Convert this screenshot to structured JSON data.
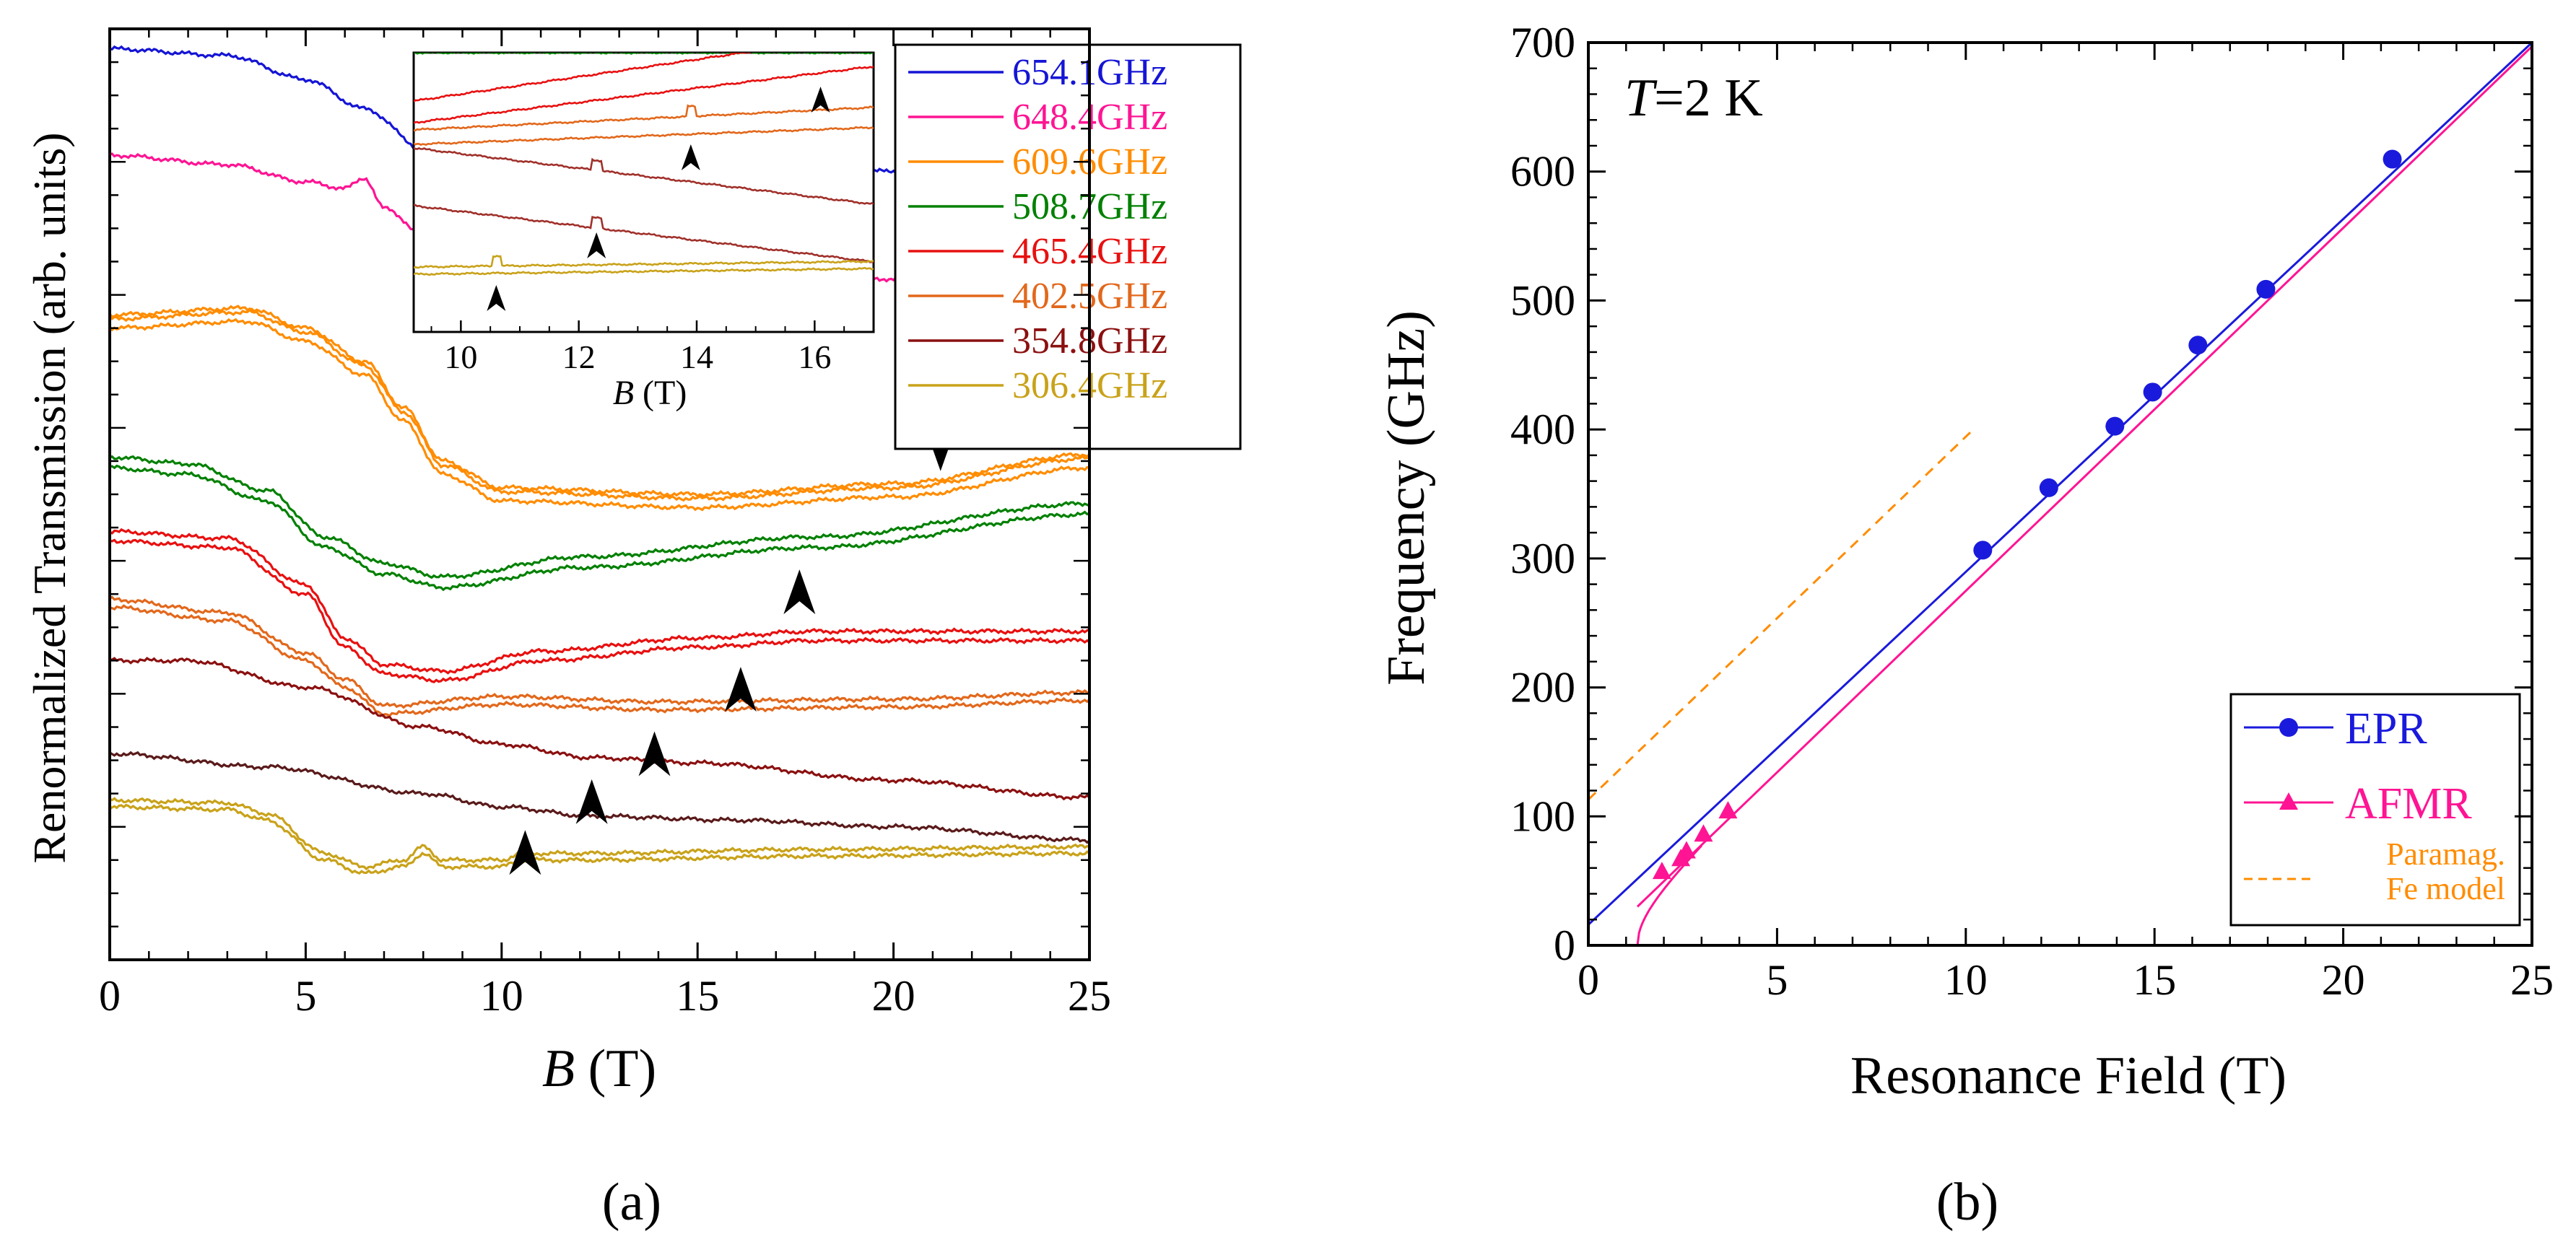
{
  "chart_data": [
    {
      "panel": "a",
      "type": "line",
      "panel_label": "(a)",
      "title": "",
      "xlabel_italic": "B",
      "xlabel_unit": " (T)",
      "ylabel": "Renormalized Transmission (arb. units)",
      "xlim": [
        0,
        25
      ],
      "xticks": [
        "0",
        "5",
        "10",
        "15",
        "20",
        "25"
      ],
      "legend": [
        {
          "label": "654.1GHz",
          "color": "#1515d6"
        },
        {
          "label": "648.4GHz",
          "color": "#ff1493"
        },
        {
          "label": "609.6GHz",
          "color": "#ff8c00"
        },
        {
          "label": "508.7GHz",
          "color": "#008000"
        },
        {
          "label": "465.4GHz",
          "color": "#e81010"
        },
        {
          "label": "402.5GHz",
          "color": "#e2681c"
        },
        {
          "label": "354.8GHz",
          "color": "#8b1010"
        },
        {
          "label": "306.4GHz",
          "color": "#c9a21a"
        }
      ],
      "series": [
        {
          "name": "654.1GHz",
          "color": "#1515d6",
          "offset": 5.9,
          "points": [
            [
              0,
              0.95
            ],
            [
              3,
              0.9
            ],
            [
              5,
              0.72
            ],
            [
              6.5,
              0.5
            ],
            [
              8,
              0.2
            ],
            [
              10,
              0.05
            ],
            [
              12,
              0.02
            ],
            [
              16,
              0.02
            ],
            [
              20,
              0.03
            ],
            [
              23.5,
              0.03
            ]
          ]
        },
        {
          "name": "648.4GHz",
          "color": "#ff1493",
          "offset": 5.1,
          "points": [
            [
              0,
              0.95
            ],
            [
              3,
              0.88
            ],
            [
              5,
              0.75
            ],
            [
              6,
              0.7
            ],
            [
              6.5,
              0.78
            ],
            [
              7,
              0.55
            ],
            [
              8.5,
              0.2
            ],
            [
              10,
              0.1
            ],
            [
              13,
              0.06
            ],
            [
              20,
              0.02
            ],
            [
              25,
              0.0
            ]
          ]
        },
        {
          "name": "609.6GHz",
          "color": "#ff8c00",
          "offset": 3.4,
          "points": [
            [
              0,
              1.35
            ],
            [
              3.5,
              1.4
            ],
            [
              5,
              1.25
            ],
            [
              6.5,
              1.0
            ],
            [
              7.5,
              0.65
            ],
            [
              8.5,
              0.25
            ],
            [
              10,
              0.05
            ],
            [
              15,
              0.0
            ],
            [
              20,
              0.08
            ],
            [
              25,
              0.3
            ]
          ],
          "second_trace": [
            0.07,
            0.1
          ]
        },
        {
          "name": "508.7GHz",
          "color": "#008000",
          "offset": 3.1,
          "points": [
            [
              0,
              0.6
            ],
            [
              2,
              0.55
            ],
            [
              4,
              0.35
            ],
            [
              5.5,
              0.0
            ],
            [
              7,
              -0.2
            ],
            [
              8.5,
              -0.3
            ],
            [
              12,
              -0.15
            ],
            [
              18,
              0.0
            ],
            [
              25,
              0.25
            ]
          ],
          "second_trace": [
            0.08
          ]
        },
        {
          "name": "465.4GHz",
          "color": "#e81010",
          "offset": 2.6,
          "points": [
            [
              0,
              0.55
            ],
            [
              3,
              0.5
            ],
            [
              5,
              0.15
            ],
            [
              6,
              -0.25
            ],
            [
              7,
              -0.45
            ],
            [
              8.5,
              -0.5
            ],
            [
              11,
              -0.35
            ],
            [
              15,
              -0.25
            ],
            [
              18,
              -0.2
            ],
            [
              25,
              -0.2
            ]
          ],
          "second_trace": [
            0.07
          ]
        },
        {
          "name": "402.5GHz",
          "color": "#e2681c",
          "offset": 2.1,
          "points": [
            [
              0,
              0.55
            ],
            [
              3,
              0.45
            ],
            [
              5,
              0.15
            ],
            [
              6,
              -0.05
            ],
            [
              7,
              -0.25
            ],
            [
              10,
              -0.18
            ],
            [
              14,
              -0.22
            ],
            [
              20,
              -0.2
            ],
            [
              25,
              -0.15
            ]
          ],
          "second_trace": [
            0.06
          ]
        },
        {
          "name": "354.8GHz",
          "color": "#8b1010",
          "offset": 1.7,
          "points": [
            [
              0,
              0.55
            ],
            [
              2,
              0.55
            ],
            [
              5,
              0.35
            ],
            [
              8,
              0.05
            ],
            [
              10,
              -0.08
            ],
            [
              12.3,
              -0.18
            ],
            [
              15,
              -0.22
            ],
            [
              20,
              -0.35
            ],
            [
              25,
              -0.48
            ]
          ]
        },
        {
          "name": "306.4GHz",
          "color": "#5a1a1a",
          "offset": 1.2,
          "points": [
            [
              0,
              0.35
            ],
            [
              4,
              0.25
            ],
            [
              8,
              0.05
            ],
            [
              10,
              -0.05
            ],
            [
              12.3,
              -0.12
            ],
            [
              16,
              -0.15
            ],
            [
              20,
              -0.2
            ],
            [
              25,
              -0.3
            ]
          ]
        },
        {
          "name": "306.4GHz",
          "color": "#c9a21a",
          "offset": 0.7,
          "points": [
            [
              0,
              0.45
            ],
            [
              3,
              0.43
            ],
            [
              4,
              0.35
            ],
            [
              5.5,
              0.05
            ],
            [
              6.5,
              -0.05
            ],
            [
              7.5,
              0.0
            ],
            [
              8,
              0.1
            ],
            [
              8.5,
              0.0
            ],
            [
              10,
              0.0
            ],
            [
              10.5,
              0.05
            ],
            [
              12,
              0.05
            ],
            [
              18,
              0.08
            ],
            [
              25,
              0.1
            ]
          ],
          "second_trace": [
            0.05
          ]
        }
      ],
      "arrows": [
        {
          "x": 21.2,
          "row": 609.6,
          "dir": "down"
        },
        {
          "x": 17.6,
          "row": 508.7,
          "dir": "up"
        },
        {
          "x": 16.1,
          "row": 465.4,
          "dir": "up"
        },
        {
          "x": 13.9,
          "row": 402.5,
          "dir": "up"
        },
        {
          "x": 12.3,
          "row": 354.8,
          "dir": "up"
        },
        {
          "x": 10.6,
          "row": 306.4,
          "dir": "up"
        }
      ],
      "inset": {
        "xlabel_italic": "B",
        "xlabel_unit": " (T)",
        "xlim": [
          9.2,
          17
        ],
        "xticks": [
          "10",
          "12",
          "14",
          "16"
        ],
        "arrows": [
          {
            "x": 16.1,
            "dir": "up"
          },
          {
            "x": 13.9,
            "dir": "up"
          },
          {
            "x": 12.3,
            "dir": "up"
          },
          {
            "x": 10.6,
            "dir": "up"
          }
        ]
      }
    },
    {
      "panel": "b",
      "type": "scatter",
      "panel_label": "(b)",
      "annotation_italic": "T",
      "annotation_rest": "=2 K",
      "xlabel": "Resonance Field (T)",
      "ylabel": "Frequency (GHz)",
      "xlim": [
        0,
        25
      ],
      "ylim": [
        0,
        700
      ],
      "xticks": [
        "0",
        "5",
        "10",
        "15",
        "20",
        "25"
      ],
      "yticks": [
        "0",
        "100",
        "200",
        "300",
        "400",
        "500",
        "600",
        "700"
      ],
      "legend": [
        {
          "label": "EPR",
          "color": "#1a1adc",
          "marker": "circle"
        },
        {
          "label": "AFMR",
          "color": "#ff1493",
          "marker": "triangle"
        },
        {
          "label": "Paramag.",
          "label2": "Fe model",
          "color": "#ff8c00",
          "marker": "dashed"
        }
      ],
      "series": [
        {
          "name": "EPR",
          "color": "#1a1adc",
          "points": [
            [
              10.45,
              306.4
            ],
            [
              12.2,
              354.8
            ],
            [
              13.95,
              402.5
            ],
            [
              14.95,
              429
            ],
            [
              16.15,
              465.4
            ],
            [
              17.95,
              508.7
            ],
            [
              21.3,
              609.6
            ]
          ]
        },
        {
          "name": "AFMR",
          "color": "#ff1493",
          "points": [
            [
              1.95,
              57
            ],
            [
              2.45,
              67
            ],
            [
              2.6,
              73
            ],
            [
              3.05,
              86
            ],
            [
              3.7,
              104
            ]
          ]
        }
      ],
      "fit_lines": [
        {
          "name": "EPR fit",
          "color": "#1a1adc",
          "from": [
            0,
            16
          ],
          "to": [
            25,
            700
          ]
        },
        {
          "name": "AFMR fit",
          "color": "#ff1493",
          "from": [
            1.3,
            30
          ],
          "to": [
            25,
            697
          ]
        },
        {
          "name": "Paramag. Fe model",
          "color": "#ff8c00",
          "dashed": true,
          "from": [
            0,
            113
          ],
          "to": [
            10.2,
            400
          ]
        }
      ]
    }
  ]
}
